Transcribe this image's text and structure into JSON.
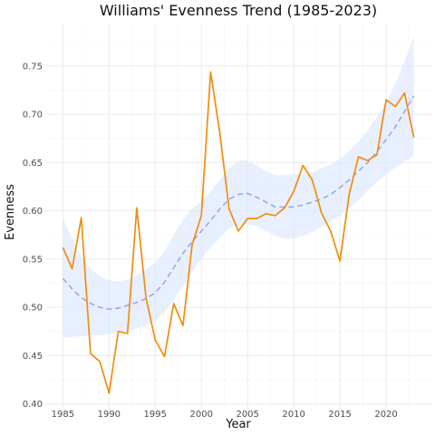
{
  "chart_data": {
    "type": "line",
    "title": "Williams' Evenness Trend (1985-2023)",
    "xlabel": "Year",
    "ylabel": "Evenness",
    "xlim": [
      1983.1,
      2024.9
    ],
    "ylim": [
      0.394,
      0.794
    ],
    "x_ticks": [
      1985,
      1990,
      1995,
      2000,
      2005,
      2010,
      2015,
      2020
    ],
    "y_ticks": [
      0.4,
      0.45,
      0.5,
      0.55,
      0.6,
      0.65,
      0.7,
      0.75
    ],
    "grid": true,
    "legend": "none",
    "colors": {
      "observed": "#f28c0f",
      "trend": "#9aa8e8",
      "ribbon": "#dbe8ff"
    },
    "series": [
      {
        "kind": "observed",
        "x": [
          1985,
          1986,
          1987,
          1988,
          1989,
          1990,
          1991,
          1992,
          1993,
          1994,
          1995,
          1996,
          1997,
          1998,
          1999,
          2000,
          2001,
          2002,
          2003,
          2004,
          2005,
          2006,
          2007,
          2008,
          2009,
          2010,
          2011,
          2012,
          2013,
          2014,
          2015,
          2016,
          2017,
          2018,
          2019,
          2020,
          2021,
          2022,
          2023
        ],
        "y": [
          0.562,
          0.54,
          0.593,
          0.452,
          0.444,
          0.411,
          0.475,
          0.473,
          0.603,
          0.51,
          0.466,
          0.449,
          0.504,
          0.481,
          0.565,
          0.595,
          0.744,
          0.68,
          0.602,
          0.579,
          0.592,
          0.592,
          0.597,
          0.595,
          0.603,
          0.62,
          0.647,
          0.632,
          0.598,
          0.579,
          0.548,
          0.617,
          0.656,
          0.652,
          0.658,
          0.715,
          0.708,
          0.722,
          0.676
        ]
      },
      {
        "kind": "trend",
        "x": [
          1985,
          1986,
          1987,
          1988,
          1989,
          1990,
          1991,
          1992,
          1993,
          1994,
          1995,
          1996,
          1997,
          1998,
          1999,
          2000,
          2001,
          2002,
          2003,
          2004,
          2005,
          2006,
          2007,
          2008,
          2009,
          2010,
          2011,
          2012,
          2013,
          2014,
          2015,
          2016,
          2017,
          2018,
          2019,
          2020,
          2021,
          2022,
          2023
        ],
        "y": [
          0.53,
          0.519,
          0.51,
          0.504,
          0.5,
          0.498,
          0.499,
          0.502,
          0.505,
          0.509,
          0.515,
          0.526,
          0.541,
          0.556,
          0.568,
          0.579,
          0.59,
          0.602,
          0.612,
          0.617,
          0.618,
          0.614,
          0.609,
          0.604,
          0.604,
          0.604,
          0.606,
          0.609,
          0.612,
          0.617,
          0.624,
          0.632,
          0.641,
          0.65,
          0.661,
          0.674,
          0.687,
          0.703,
          0.719
        ],
        "lower": [
          0.469,
          0.469,
          0.47,
          0.471,
          0.471,
          0.472,
          0.474,
          0.476,
          0.478,
          0.481,
          0.486,
          0.495,
          0.508,
          0.522,
          0.536,
          0.55,
          0.562,
          0.572,
          0.582,
          0.585,
          0.586,
          0.584,
          0.579,
          0.574,
          0.571,
          0.571,
          0.574,
          0.578,
          0.583,
          0.589,
          0.595,
          0.603,
          0.611,
          0.621,
          0.63,
          0.638,
          0.645,
          0.651,
          0.657
        ],
        "upper": [
          0.592,
          0.571,
          0.552,
          0.54,
          0.532,
          0.528,
          0.527,
          0.529,
          0.533,
          0.539,
          0.546,
          0.558,
          0.575,
          0.591,
          0.602,
          0.61,
          0.62,
          0.632,
          0.645,
          0.652,
          0.652,
          0.647,
          0.641,
          0.637,
          0.637,
          0.638,
          0.638,
          0.64,
          0.644,
          0.648,
          0.654,
          0.662,
          0.672,
          0.683,
          0.697,
          0.712,
          0.732,
          0.755,
          0.781
        ]
      }
    ]
  }
}
